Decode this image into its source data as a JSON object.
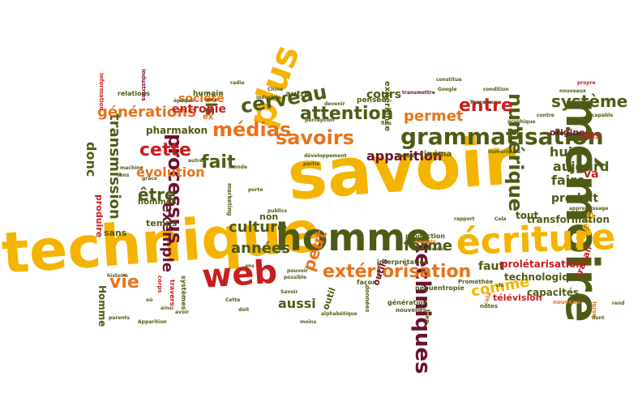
{
  "palette": {
    "gold": "#f4b400",
    "orange": "#e8731a",
    "red": "#c81e1e",
    "olive": "#4f5b14",
    "maroon": "#6b1230",
    "dark": "#3a3a12"
  },
  "words": [
    {
      "text": "savoir",
      "color": "gold"
    },
    {
      "text": "technique",
      "color": "gold"
    },
    {
      "text": "mémoire",
      "color": "olive"
    },
    {
      "text": "homme",
      "color": "olive"
    },
    {
      "text": "écriture",
      "color": "gold"
    },
    {
      "text": "web",
      "color": "red"
    },
    {
      "text": "plus",
      "color": "gold"
    },
    {
      "text": "grammatisation",
      "color": "olive"
    },
    {
      "text": "techniques",
      "color": "maroon"
    },
    {
      "text": "processus",
      "color": "maroon"
    },
    {
      "text": "savoirs",
      "color": "orange"
    },
    {
      "text": "extériorisation",
      "color": "orange"
    },
    {
      "text": "numérique",
      "color": "olive"
    },
    {
      "text": "cerveau",
      "color": "olive"
    },
    {
      "text": "médias",
      "color": "orange"
    },
    {
      "text": "attention",
      "color": "olive"
    },
    {
      "text": "entre",
      "color": "red"
    },
    {
      "text": "système",
      "color": "olive"
    },
    {
      "text": "cette",
      "color": "red"
    },
    {
      "text": "transmission",
      "color": "olive"
    },
    {
      "text": "générations",
      "color": "orange"
    },
    {
      "text": "fait",
      "color": "olive"
    },
    {
      "text": "permet",
      "color": "orange"
    },
    {
      "text": "apparition",
      "color": "maroon"
    },
    {
      "text": "faire",
      "color": "olive"
    },
    {
      "text": "être",
      "color": "olive"
    },
    {
      "text": "vie",
      "color": "orange"
    },
    {
      "text": "peut",
      "color": "orange"
    },
    {
      "text": "culture",
      "color": "olive"
    },
    {
      "text": "années",
      "color": "olive"
    },
    {
      "text": "forme",
      "color": "olive"
    },
    {
      "text": "évolution",
      "color": "orange"
    },
    {
      "text": "donc",
      "color": "olive"
    },
    {
      "text": "ils",
      "color": "olive"
    },
    {
      "text": "société",
      "color": "orange"
    },
    {
      "text": "entropie",
      "color": "red"
    },
    {
      "text": "exemple",
      "color": "maroon"
    },
    {
      "text": "cours",
      "color": "olive"
    },
    {
      "text": "hui",
      "color": "olive"
    },
    {
      "text": "aujourd",
      "color": "olive"
    },
    {
      "text": "produit",
      "color": "olive"
    },
    {
      "text": "va",
      "color": "red"
    },
    {
      "text": "objets",
      "color": "gold"
    },
    {
      "text": "comme",
      "color": "gold"
    },
    {
      "text": "aussi",
      "color": "olive"
    },
    {
      "text": "faut",
      "color": "olive"
    },
    {
      "text": "prolétarisation",
      "color": "red"
    },
    {
      "text": "technologique",
      "color": "olive"
    },
    {
      "text": "capacités",
      "color": "olive"
    },
    {
      "text": "transformation",
      "color": "olive"
    },
    {
      "text": "tout",
      "color": "olive"
    },
    {
      "text": "pharmakon",
      "color": "olive"
    },
    {
      "text": "Homme",
      "color": "olive"
    },
    {
      "text": "sans",
      "color": "olive"
    },
    {
      "text": "temps",
      "color": "olive"
    },
    {
      "text": "non",
      "color": "olive"
    },
    {
      "text": "outil",
      "color": "olive"
    },
    {
      "text": "outils",
      "color": "maroon"
    },
    {
      "text": "télévision",
      "color": "red"
    },
    {
      "text": "travail",
      "color": "red"
    },
    {
      "text": "origine",
      "color": "maroon"
    },
    {
      "text": "très",
      "color": "red"
    },
    {
      "text": "cinéma",
      "color": "olive"
    },
    {
      "text": "produire",
      "color": "red"
    },
    {
      "text": "hommes",
      "color": "olive"
    },
    {
      "text": "expérience",
      "color": "olive"
    },
    {
      "text": "autre",
      "color": "olive"
    },
    {
      "text": "pensée",
      "color": "olive"
    },
    {
      "text": "ex",
      "color": "orange"
    },
    {
      "text": "humain",
      "color": "olive"
    },
    {
      "text": "relations",
      "color": "olive"
    },
    {
      "text": "information",
      "color": "red"
    },
    {
      "text": "industries",
      "color": "maroon"
    },
    {
      "text": "production",
      "color": "olive"
    },
    {
      "text": "interprétation",
      "color": "olive"
    },
    {
      "text": "néguentropie",
      "color": "olive"
    },
    {
      "text": "façon",
      "color": "olive"
    },
    {
      "text": "données",
      "color": "olive"
    },
    {
      "text": "génération",
      "color": "olive"
    },
    {
      "text": "nouvelles",
      "color": "olive"
    },
    {
      "text": "Prométhée",
      "color": "olive"
    },
    {
      "text": "notes",
      "color": "olive"
    },
    {
      "text": "bien",
      "color": "olive"
    },
    {
      "text": "cela",
      "color": "orange"
    },
    {
      "text": "nouveau",
      "color": "orange"
    },
    {
      "text": "lorsq",
      "color": "orange"
    },
    {
      "text": "rend",
      "color": "olive"
    },
    {
      "text": "dont",
      "color": "olive"
    },
    {
      "text": "Cela",
      "color": "olive"
    },
    {
      "text": "rapport",
      "color": "olive"
    },
    {
      "text": "apprentissage",
      "color": "olive"
    },
    {
      "text": "nouveaux",
      "color": "olive"
    },
    {
      "text": "capable",
      "color": "olive"
    },
    {
      "text": "propre",
      "color": "red"
    },
    {
      "text": "numériques",
      "color": "olive"
    },
    {
      "text": "parole",
      "color": "olive"
    },
    {
      "text": "développement",
      "color": "olive"
    },
    {
      "text": "perception",
      "color": "olive"
    },
    {
      "text": "film",
      "color": "olive"
    },
    {
      "text": "partie",
      "color": "olive"
    },
    {
      "text": "monde",
      "color": "olive"
    },
    {
      "text": "marketing",
      "color": "olive"
    },
    {
      "text": "porte",
      "color": "olive"
    },
    {
      "text": "grâce",
      "color": "olive"
    },
    {
      "text": "Savoir",
      "color": "olive"
    },
    {
      "text": "pouvoir",
      "color": "olive"
    },
    {
      "text": "possible",
      "color": "olive"
    },
    {
      "text": "ans",
      "color": "olive"
    },
    {
      "text": "Cette",
      "color": "olive"
    },
    {
      "text": "doit",
      "color": "olive"
    },
    {
      "text": "moins",
      "color": "olive"
    },
    {
      "text": "alphabétique",
      "color": "olive"
    },
    {
      "text": "corps",
      "color": "red"
    },
    {
      "text": "ainsi",
      "color": "olive"
    },
    {
      "text": "avoir",
      "color": "olive"
    },
    {
      "text": "où",
      "color": "olive"
    },
    {
      "text": "parents",
      "color": "olive"
    },
    {
      "text": "histoire",
      "color": "olive"
    },
    {
      "text": "Apparition",
      "color": "olive"
    },
    {
      "text": "systèmes",
      "color": "olive"
    },
    {
      "text": "travers",
      "color": "red"
    },
    {
      "text": "époque",
      "color": "olive"
    },
    {
      "text": "radio",
      "color": "olive"
    },
    {
      "text": "Chine",
      "color": "olive"
    },
    {
      "text": "industrie",
      "color": "olive"
    },
    {
      "text": "devenir",
      "color": "olive"
    },
    {
      "text": "transmettre",
      "color": "maroon"
    },
    {
      "text": "Processus",
      "color": "olive"
    },
    {
      "text": "condition",
      "color": "olive"
    },
    {
      "text": "Google",
      "color": "olive"
    },
    {
      "text": "sens",
      "color": "olive"
    },
    {
      "text": "autres",
      "color": "olive"
    },
    {
      "text": "contre",
      "color": "olive"
    },
    {
      "text": "graphique",
      "color": "olive"
    },
    {
      "text": "devient",
      "color": "olive"
    },
    {
      "text": "Socrate",
      "color": "orange"
    },
    {
      "text": "constitue",
      "color": "olive"
    },
    {
      "text": "machine",
      "color": "olive"
    },
    {
      "text": "publics",
      "color": "olive"
    },
    {
      "text": "clé",
      "color": "olive"
    }
  ]
}
